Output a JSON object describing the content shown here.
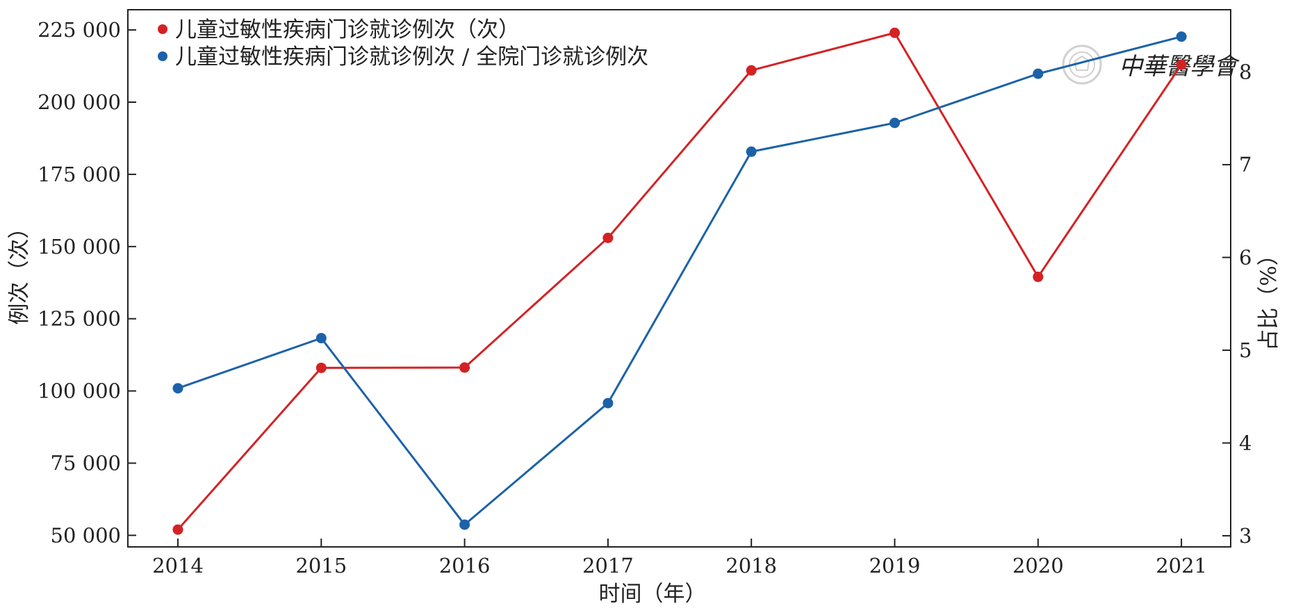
{
  "chart_data": {
    "type": "line",
    "title": "",
    "xlabel": "时间（年）",
    "ylabel_left": "例次（次）",
    "ylabel_right": "占比（%）",
    "categories": [
      "2014",
      "2015",
      "2016",
      "2017",
      "2018",
      "2019",
      "2020",
      "2021"
    ],
    "y_left_ticks": [
      50000,
      75000,
      100000,
      125000,
      150000,
      175000,
      200000,
      225000
    ],
    "y_left_tick_labels": [
      "50 000",
      "75 000",
      "100 000",
      "125 000",
      "150 000",
      "175 000",
      "200 000",
      "225 000"
    ],
    "y_right_ticks": [
      3,
      4,
      5,
      6,
      7,
      8
    ],
    "y_right_tick_labels": [
      "3",
      "4",
      "5",
      "6",
      "7",
      "8"
    ],
    "ylim_left": [
      46000,
      232000
    ],
    "ylim_right": [
      2.88,
      8.67
    ],
    "grid": false,
    "legend_position": "top-left",
    "series": [
      {
        "name": "儿童过敏性疾病门诊就诊例次（次）",
        "axis": "left",
        "color": "#d42224",
        "values": [
          52000,
          108000,
          108100,
          153000,
          211000,
          224000,
          139500,
          213000
        ]
      },
      {
        "name": "儿童过敏性疾病门诊就诊例次 / 全院门诊就诊例次",
        "axis": "right",
        "color": "#1c62a8",
        "values": [
          4.59,
          5.13,
          3.12,
          4.43,
          7.14,
          7.45,
          7.98,
          8.38
        ]
      }
    ]
  },
  "watermark": {
    "text": "中華醫學會",
    "color": "#d0d0d0",
    "icon": "seal-icon"
  }
}
